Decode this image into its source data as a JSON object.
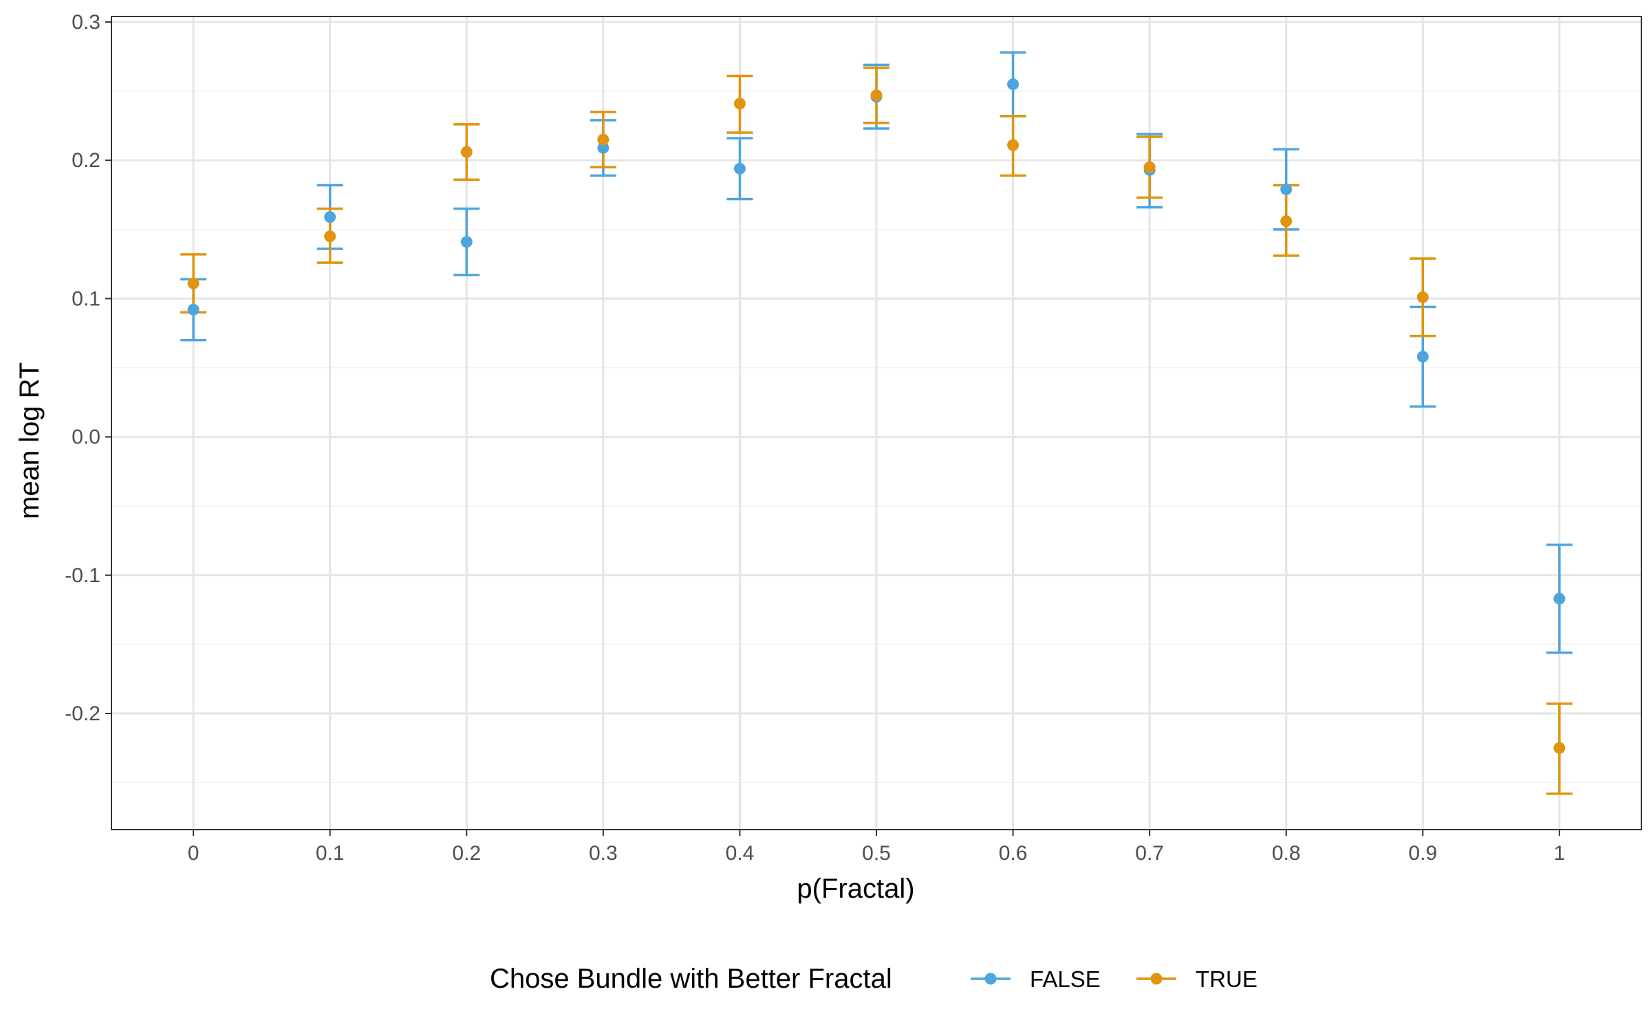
{
  "chart_data": {
    "type": "scatter",
    "title": "",
    "xlabel": "p(Fractal)",
    "ylabel": "mean log RT",
    "x": [
      0,
      0.1,
      0.2,
      0.3,
      0.4,
      0.5,
      0.6,
      0.7,
      0.8,
      0.9,
      1
    ],
    "x_tick_labels": [
      "0",
      "0.1",
      "0.2",
      "0.3",
      "0.4",
      "0.5",
      "0.6",
      "0.7",
      "0.8",
      "0.9",
      "1"
    ],
    "y_ticks": [
      -0.2,
      -0.1,
      0.0,
      0.1,
      0.2,
      0.3
    ],
    "y_tick_labels": [
      "-0.2",
      "-0.1",
      "0.0",
      "0.1",
      "0.2",
      "0.3"
    ],
    "xlim": [
      -0.06,
      1.06
    ],
    "ylim": [
      -0.284,
      0.304
    ],
    "grid": true,
    "legend": {
      "title": "Chose Bundle with Better Fractal",
      "position": "bottom"
    },
    "series": [
      {
        "name": "FALSE",
        "color": "#4EA5DE",
        "y": [
          0.092,
          0.159,
          0.141,
          0.209,
          0.194,
          0.246,
          0.255,
          0.193,
          0.179,
          0.058,
          -0.117
        ],
        "lower": [
          0.07,
          0.136,
          0.117,
          0.189,
          0.172,
          0.223,
          0.232,
          0.166,
          0.15,
          0.022,
          -0.156
        ],
        "upper": [
          0.114,
          0.182,
          0.165,
          0.229,
          0.216,
          0.269,
          0.278,
          0.219,
          0.208,
          0.094,
          -0.078
        ]
      },
      {
        "name": "TRUE",
        "color": "#E0940F",
        "y": [
          0.111,
          0.145,
          0.206,
          0.215,
          0.241,
          0.247,
          0.211,
          0.195,
          0.156,
          0.101,
          -0.225
        ],
        "lower": [
          0.09,
          0.126,
          0.186,
          0.195,
          0.22,
          0.227,
          0.189,
          0.173,
          0.131,
          0.073,
          -0.258
        ],
        "upper": [
          0.132,
          0.165,
          0.226,
          0.235,
          0.261,
          0.267,
          0.232,
          0.217,
          0.182,
          0.129,
          -0.193
        ]
      }
    ]
  }
}
